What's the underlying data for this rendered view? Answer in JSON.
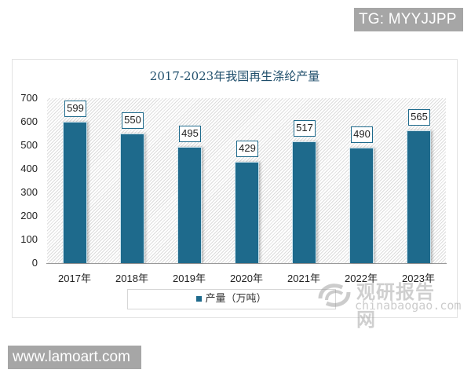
{
  "badges": {
    "top_right": "TG: MYYJJPP",
    "bottom_left": "www.lamoart.com"
  },
  "watermark": {
    "cn": "观研报告网",
    "en": "chinabaogao.com"
  },
  "colors": {
    "bar": "#1e6a8c",
    "title": "#1f4e6b",
    "badge_bg": "#a6a6a6"
  },
  "chart_data": {
    "type": "bar",
    "title": "2017-2023年我国再生涤纶产量",
    "xlabel": "",
    "ylabel": "",
    "categories": [
      "2017年",
      "2018年",
      "2019年",
      "2020年",
      "2021年",
      "2022年",
      "2023年"
    ],
    "series": [
      {
        "name": "产量（万吨）",
        "values": [
          599,
          550,
          495,
          429,
          517,
          490,
          565
        ]
      }
    ],
    "ylim": [
      0,
      700
    ],
    "yticks": [
      "700",
      "600",
      "500",
      "400",
      "300",
      "200",
      "100",
      "0"
    ],
    "grid": false,
    "legend_position": "bottom",
    "data_labels": [
      "599",
      "550",
      "495",
      "429",
      "517",
      "490",
      "565"
    ]
  }
}
